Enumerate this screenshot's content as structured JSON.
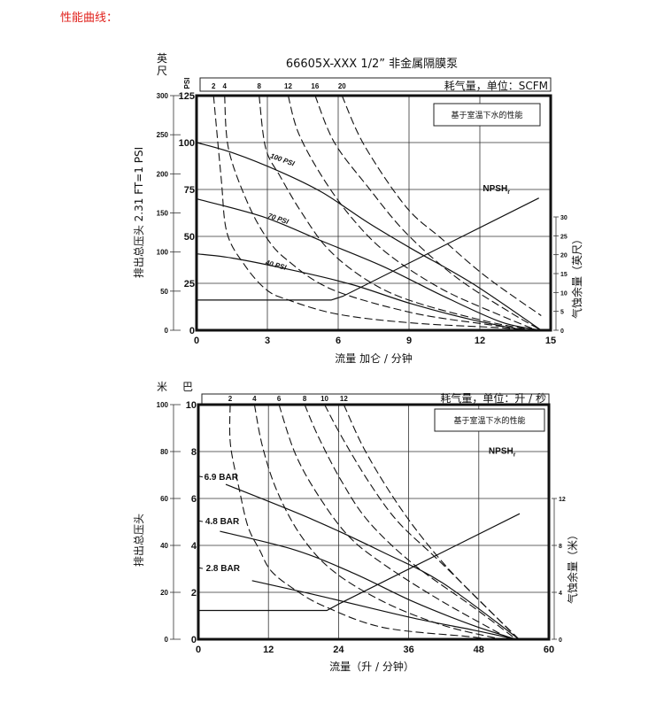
{
  "page_title": "性能曲线：",
  "chart_data": [
    {
      "type": "line",
      "title": "66605X-XXX 1/2” 非金属隔膜泵",
      "note": "基于室温下水的性能",
      "air_header": "耗气量，单位：SCFM",
      "outer_unit": [
        "英",
        "尺"
      ],
      "inner_unit": "PSI",
      "ylabel": "排出总压头 2.31 FT=1 PSI",
      "xlabel": "流量 加仑 / 分钟",
      "y2label": "气蚀余量（英尺）",
      "xlim": [
        0,
        15
      ],
      "xticks": [
        0,
        3,
        6,
        9,
        12,
        15
      ],
      "ylim": [
        0,
        125
      ],
      "yticks": [
        0,
        25,
        50,
        75,
        100,
        125
      ],
      "outer_ylim": [
        0,
        300
      ],
      "outer_yticks": [
        0,
        50,
        100,
        150,
        200,
        250,
        300
      ],
      "y2lim": [
        0,
        30
      ],
      "y2ticks": [
        0,
        5,
        10,
        15,
        20,
        25,
        30
      ],
      "grid": true,
      "pressure_series": [
        {
          "name": "100 PSI",
          "points": [
            [
              0,
              100
            ],
            [
              1.54,
              94.5
            ],
            [
              3.57,
              84.3
            ],
            [
              5.33,
              73.4
            ],
            [
              7.23,
              57.6
            ],
            [
              9.1,
              43.5
            ],
            [
              11.7,
              24.8
            ],
            [
              14.6,
              0
            ]
          ]
        },
        {
          "name": "70 PSI",
          "points": [
            [
              0,
              70
            ],
            [
              2.8,
              60.5
            ],
            [
              5.33,
              47.4
            ],
            [
              7.9,
              34
            ],
            [
              10.4,
              18.5
            ],
            [
              12.9,
              4.4
            ],
            [
              14.6,
              0
            ]
          ]
        },
        {
          "name": "40 PSI",
          "points": [
            [
              0,
              40.7
            ],
            [
              1.54,
              38.4
            ],
            [
              4.07,
              32
            ],
            [
              6.6,
              24.3
            ],
            [
              9.1,
              14.1
            ],
            [
              11.7,
              5.5
            ],
            [
              13.9,
              0
            ]
          ]
        }
      ],
      "air_series": [
        {
          "name": "2",
          "points": [
            [
              0.72,
              125
            ],
            [
              1.04,
              81.6
            ],
            [
              1.29,
              51.9
            ],
            [
              2.05,
              34.5
            ],
            [
              2.93,
              21.9
            ],
            [
              3.82,
              16.4
            ],
            [
              5.97,
              8.6
            ],
            [
              9.1,
              3.9
            ],
            [
              12.9,
              1.3
            ],
            [
              13.9,
              0
            ]
          ]
        },
        {
          "name": "4",
          "points": [
            [
              1.19,
              125
            ],
            [
              1.35,
              97
            ],
            [
              2.1,
              69.7
            ],
            [
              2.93,
              50
            ],
            [
              3.82,
              37.6
            ],
            [
              5.71,
              21.9
            ],
            [
              9.1,
              9.4
            ],
            [
              12.3,
              3.1
            ],
            [
              14.2,
              0
            ]
          ]
        },
        {
          "name": "8",
          "points": [
            [
              2.65,
              125
            ],
            [
              2.93,
              97
            ],
            [
              3.56,
              81.6
            ],
            [
              4.45,
              62.7
            ],
            [
              5.59,
              43
            ],
            [
              7.23,
              26.6
            ],
            [
              9.1,
              15.6
            ],
            [
              12.3,
              4.7
            ],
            [
              14.3,
              0
            ]
          ]
        },
        {
          "name": "12",
          "points": [
            [
              3.88,
              125
            ],
            [
              4.32,
              105
            ],
            [
              5.33,
              81.6
            ],
            [
              6.6,
              59.5
            ],
            [
              8.1,
              40.7
            ],
            [
              10.4,
              21.9
            ],
            [
              12.9,
              7.8
            ],
            [
              14.4,
              0
            ]
          ]
        },
        {
          "name": "16",
          "points": [
            [
              5.02,
              125
            ],
            [
              5.84,
              100
            ],
            [
              7.23,
              76.8
            ],
            [
              8.87,
              51.9
            ],
            [
              11.0,
              28.2
            ],
            [
              13.3,
              9.4
            ],
            [
              14.6,
              0
            ]
          ]
        },
        {
          "name": "20",
          "points": [
            [
              6.16,
              125
            ],
            [
              7.1,
              98.7
            ],
            [
              8.87,
              65.8
            ],
            [
              10.4,
              48.6
            ],
            [
              12.3,
              28.2
            ],
            [
              14.6,
              7.8
            ]
          ]
        }
      ],
      "npsh": {
        "name": "NPSH",
        "subscript": "r",
        "points": [
          [
            0,
            8
          ],
          [
            5.7,
            8
          ],
          [
            6.2,
            9
          ],
          [
            14.5,
            35
          ]
        ]
      }
    },
    {
      "type": "line",
      "note": "基于室温下水的性能",
      "air_header": "耗气量，单位：升 / 秒",
      "outer_unit": [
        "米"
      ],
      "inner_unit": "巴",
      "ylabel": "排出总压头",
      "xlabel": "流量（升 / 分钟）",
      "y2label": "气蚀余量（米）",
      "xlim": [
        0,
        60
      ],
      "xticks": [
        0,
        12,
        24,
        36,
        48,
        60
      ],
      "ylim": [
        0,
        10
      ],
      "yticks": [
        0,
        2,
        4,
        6,
        8,
        10
      ],
      "outer_ylim": [
        0,
        100
      ],
      "outer_yticks": [
        0,
        20,
        40,
        60,
        80,
        100
      ],
      "y2lim": [
        0,
        12
      ],
      "y2ticks": [
        0,
        4,
        8,
        12
      ],
      "grid": true,
      "pressure_series": [
        {
          "name": "6.9 BAR",
          "points": [
            [
              4.7,
              6.6
            ],
            [
              19.6,
              5.1
            ],
            [
              31.7,
              3.7
            ],
            [
              41.8,
              2.4
            ],
            [
              54.9,
              0
            ]
          ]
        },
        {
          "name": "4.8 BAR",
          "points": [
            [
              3.7,
              4.6
            ],
            [
              16.6,
              3.8
            ],
            [
              26.7,
              2.8
            ],
            [
              36.8,
              1.6
            ],
            [
              46.9,
              0.6
            ],
            [
              54.4,
              0
            ]
          ]
        },
        {
          "name": "2.8 BAR",
          "points": [
            [
              9.2,
              2.5
            ],
            [
              21.6,
              1.8
            ],
            [
              36.8,
              0.9
            ],
            [
              46.9,
              0.4
            ],
            [
              54.4,
              0
            ]
          ]
        }
      ],
      "air_series": [
        {
          "name": "2",
          "points": [
            [
              5.45,
              10
            ],
            [
              5.5,
              8.3
            ],
            [
              7,
              6.4
            ],
            [
              8.5,
              4.8
            ],
            [
              10.5,
              3.8
            ],
            [
              12.5,
              2.9
            ],
            [
              16.6,
              2.1
            ],
            [
              21.6,
              1.4
            ],
            [
              31.7,
              0.5
            ],
            [
              46.9,
              0.1
            ],
            [
              49.4,
              0
            ]
          ]
        },
        {
          "name": "4",
          "points": [
            [
              9.6,
              10
            ],
            [
              11,
              8.2
            ],
            [
              13.5,
              6.3
            ],
            [
              17.6,
              4.4
            ],
            [
              23.1,
              2.9
            ],
            [
              31.7,
              1.6
            ],
            [
              41.8,
              0.6
            ],
            [
              51.9,
              0
            ]
          ]
        },
        {
          "name": "6",
          "points": [
            [
              13.8,
              10
            ],
            [
              16.6,
              7.9
            ],
            [
              20.6,
              6.1
            ],
            [
              25.7,
              4.4
            ],
            [
              31.7,
              3.2
            ],
            [
              41.8,
              1.6
            ],
            [
              53.4,
              0
            ]
          ]
        },
        {
          "name": "8",
          "points": [
            [
              18.2,
              10
            ],
            [
              20.6,
              8.6
            ],
            [
              24.6,
              6.7
            ],
            [
              29.2,
              5
            ],
            [
              36.8,
              3.2
            ],
            [
              46.9,
              1.4
            ],
            [
              54.4,
              0
            ]
          ]
        },
        {
          "name": "10",
          "points": [
            [
              21.6,
              10
            ],
            [
              24.6,
              8.6
            ],
            [
              29.2,
              6.7
            ],
            [
              34.2,
              5
            ],
            [
              41.8,
              3.2
            ],
            [
              54.4,
              0.1
            ]
          ]
        },
        {
          "name": "12",
          "points": [
            [
              24.9,
              10
            ],
            [
              28.2,
              8.2
            ],
            [
              32.7,
              6.3
            ],
            [
              37.8,
              4.5
            ],
            [
              44.3,
              2.6
            ],
            [
              54.9,
              0
            ]
          ]
        }
      ],
      "npsh": {
        "name": "NPSH",
        "subscript": "r",
        "points": [
          [
            0,
            2.45
          ],
          [
            22,
            2.45
          ],
          [
            24,
            3
          ],
          [
            55,
            10.7
          ]
        ]
      }
    }
  ]
}
